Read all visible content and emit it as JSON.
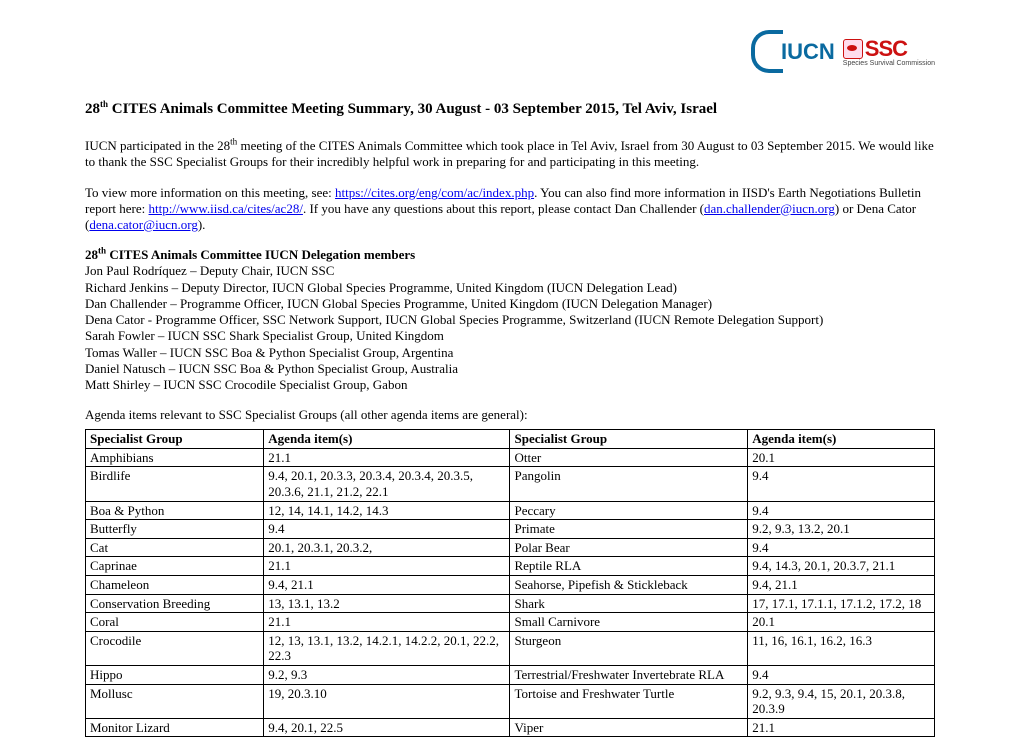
{
  "logos": {
    "iucn_text": "IUCN",
    "ssc_text": "SSC",
    "ssc_sub": "Species Survival Commission"
  },
  "title_pre": "28",
  "title_sup": "th",
  "title_rest": " CITES Animals Committee Meeting Summary, 30 August - 03 September 2015, Tel Aviv, Israel",
  "para1a": "IUCN participated in the 28",
  "para1_sup": "th",
  "para1b": " meeting of the CITES Animals Committee which took place in Tel Aviv, Israel from 30 August to 03 September 2015. We would like to thank the SSC Specialist Groups for their incredibly helpful work in preparing for and participating in this meeting.",
  "para2a": "To view more information on this meeting, see: ",
  "link1": "https://cites.org/eng/com/ac/index.php",
  "para2b": ". You can also find more information in IISD's Earth Negotiations Bulletin report here: ",
  "link2": "http://www.iisd.ca/cites/ac28/",
  "para2c": ". If you have any questions about this report, please contact Dan Challender (",
  "email1": "dan.challender@iucn.org",
  "para2d": ") or Dena Cator (",
  "email2": "dena.cator@iucn.org",
  "para2e": ").",
  "members_head_pre": "28",
  "members_head_sup": "th",
  "members_head_rest": " CITES Animals Committee IUCN Delegation members",
  "members": [
    "Jon Paul Rodríquez – Deputy Chair, IUCN SSC",
    "Richard Jenkins – Deputy Director, IUCN Global Species Programme, United Kingdom (IUCN Delegation Lead)",
    "Dan Challender – Programme Officer, IUCN Global Species Programme, United Kingdom (IUCN Delegation Manager)",
    "Dena Cator - Programme Officer, SSC Network Support, IUCN Global Species Programme, Switzerland (IUCN Remote Delegation Support)",
    "Sarah Fowler – IUCN SSC Shark Specialist Group, United Kingdom",
    "Tomas Waller – IUCN SSC Boa & Python Specialist Group, Argentina",
    "Daniel Natusch – IUCN SSC Boa & Python Specialist Group, Australia",
    "Matt Shirley – IUCN SSC Crocodile Specialist Group, Gabon"
  ],
  "table_intro": "Agenda items relevant to SSC Specialist Groups (all other agenda items are general):",
  "table": {
    "headers": [
      "Specialist Group",
      "Agenda item(s)",
      "Specialist Group",
      "Agenda item(s)"
    ],
    "rows": [
      [
        "Amphibians",
        "21.1",
        "Otter",
        "20.1"
      ],
      [
        "Birdlife",
        "9.4, 20.1, 20.3.3, 20.3.4, 20.3.4, 20.3.5, 20.3.6, 21.1, 21.2, 22.1",
        "Pangolin",
        "9.4"
      ],
      [
        "Boa & Python",
        "12, 14, 14.1, 14.2, 14.3",
        "Peccary",
        "9.4"
      ],
      [
        "Butterfly",
        "9.4",
        "Primate",
        "9.2, 9.3, 13.2, 20.1"
      ],
      [
        "Cat",
        "20.1, 20.3.1, 20.3.2,",
        "Polar Bear",
        "9.4"
      ],
      [
        "Caprinae",
        "21.1",
        "Reptile RLA",
        "9.4, 14.3, 20.1, 20.3.7, 21.1"
      ],
      [
        "Chameleon",
        "9.4, 21.1",
        "Seahorse, Pipefish & Stickleback",
        "9.4, 21.1"
      ],
      [
        "Conservation Breeding",
        "13, 13.1, 13.2",
        "Shark",
        "17, 17.1, 17.1.1, 17.1.2, 17.2, 18"
      ],
      [
        "Coral",
        "21.1",
        "Small Carnivore",
        "20.1"
      ],
      [
        "Crocodile",
        "12, 13, 13.1, 13.2, 14.2.1, 14.2.2, 20.1, 22.2, 22.3",
        "Sturgeon",
        "11, 16, 16.1, 16.2, 16.3"
      ],
      [
        "Hippo",
        "9.2, 9.3",
        "Terrestrial/Freshwater Invertebrate RLA",
        "9.4"
      ],
      [
        "Mollusc",
        "19, 20.3.10",
        "Tortoise and Freshwater Turtle",
        "9.2, 9.3, 9.4, 15, 20.1, 20.3.8, 20.3.9"
      ],
      [
        "Monitor Lizard",
        "9.4, 20.1, 22.5",
        "Viper",
        "21.1"
      ]
    ]
  }
}
